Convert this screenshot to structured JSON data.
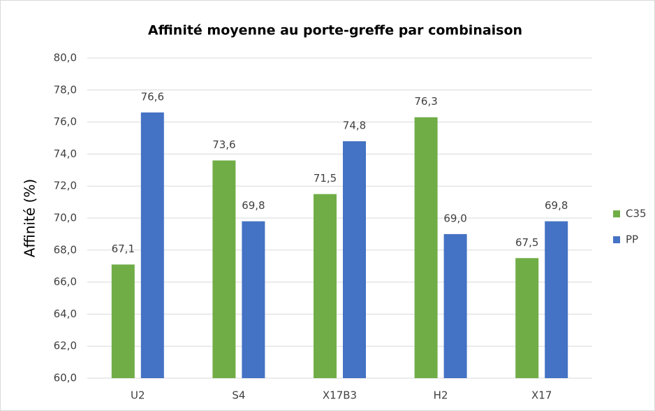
{
  "chart_data": {
    "type": "bar",
    "title": "Affinité moyenne au porte-greffe par combinaison",
    "y_label": "Affinité (%)",
    "categories": [
      "U2",
      "S4",
      "X17B3",
      "H2",
      "X17"
    ],
    "series": [
      {
        "name": "C35",
        "color": "#70ad47",
        "values": [
          67.1,
          73.6,
          71.5,
          76.3,
          67.5
        ],
        "value_labels": [
          "67,1",
          "73,6",
          "71,5",
          "76,3",
          "67,5"
        ]
      },
      {
        "name": "PP",
        "color": "#4472c4",
        "values": [
          76.6,
          69.8,
          74.8,
          69.0,
          69.8
        ],
        "value_labels": [
          "76,6",
          "69,8",
          "74,8",
          "69,0",
          "69,8"
        ]
      }
    ],
    "ylim": [
      60,
      80
    ],
    "yticks": [
      {
        "value": 60,
        "label": "60,0"
      },
      {
        "value": 62,
        "label": "62,0"
      },
      {
        "value": 64,
        "label": "64,0"
      },
      {
        "value": 66,
        "label": "66,0"
      },
      {
        "value": 68,
        "label": "68,0"
      },
      {
        "value": 70,
        "label": "70,0"
      },
      {
        "value": 72,
        "label": "72,0"
      },
      {
        "value": 74,
        "label": "74,0"
      },
      {
        "value": 76,
        "label": "76,0"
      },
      {
        "value": 78,
        "label": "78,0"
      },
      {
        "value": 80,
        "label": "80,0"
      }
    ],
    "grid": true,
    "legend": "right"
  }
}
